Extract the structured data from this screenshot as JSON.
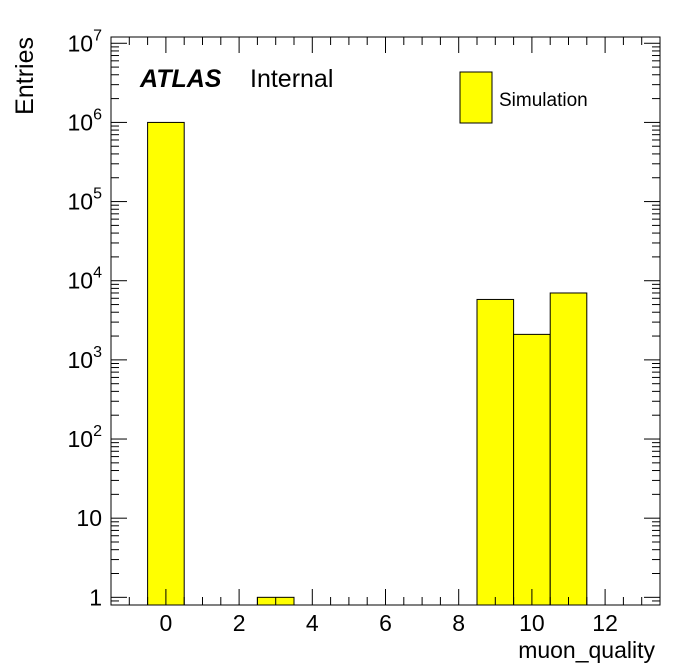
{
  "chart_data": {
    "type": "bar",
    "title": "",
    "xlabel": "muon_quality",
    "ylabel": "Entries",
    "yscale": "log",
    "xlim": [
      -1.5,
      13.5
    ],
    "ylim": [
      0.8,
      12000000
    ],
    "grid": false,
    "x_ticks": [
      {
        "value": 0,
        "label": "0"
      },
      {
        "value": 2,
        "label": "2"
      },
      {
        "value": 4,
        "label": "4"
      },
      {
        "value": 6,
        "label": "6"
      },
      {
        "value": 8,
        "label": "8"
      },
      {
        "value": 10,
        "label": "10"
      },
      {
        "value": 12,
        "label": "12"
      }
    ],
    "y_ticks": [
      {
        "value": 1,
        "base": "1",
        "exp": ""
      },
      {
        "value": 10,
        "base": "10",
        "exp": ""
      },
      {
        "value": 100,
        "base": "10",
        "exp": "2"
      },
      {
        "value": 1000,
        "base": "10",
        "exp": "3"
      },
      {
        "value": 10000,
        "base": "10",
        "exp": "4"
      },
      {
        "value": 100000,
        "base": "10",
        "exp": "5"
      },
      {
        "value": 1000000,
        "base": "10",
        "exp": "6"
      },
      {
        "value": 10000000,
        "base": "10",
        "exp": "7"
      }
    ],
    "bin_edges": [
      -0.5,
      0.5,
      1.5,
      2.5,
      3.5,
      4.5,
      5.5,
      6.5,
      7.5,
      8.5,
      9.5,
      10.5,
      11.5
    ],
    "series": [
      {
        "name": "Simulation",
        "color": "#ffff00",
        "values": [
          1000000,
          0,
          0,
          1,
          0,
          0,
          0,
          0,
          0,
          5800,
          2100,
          7000
        ]
      }
    ],
    "legend": {
      "position": "top-right",
      "entries": [
        "Simulation"
      ]
    },
    "annotation": {
      "experiment": "ATLAS",
      "status": "Internal"
    }
  }
}
